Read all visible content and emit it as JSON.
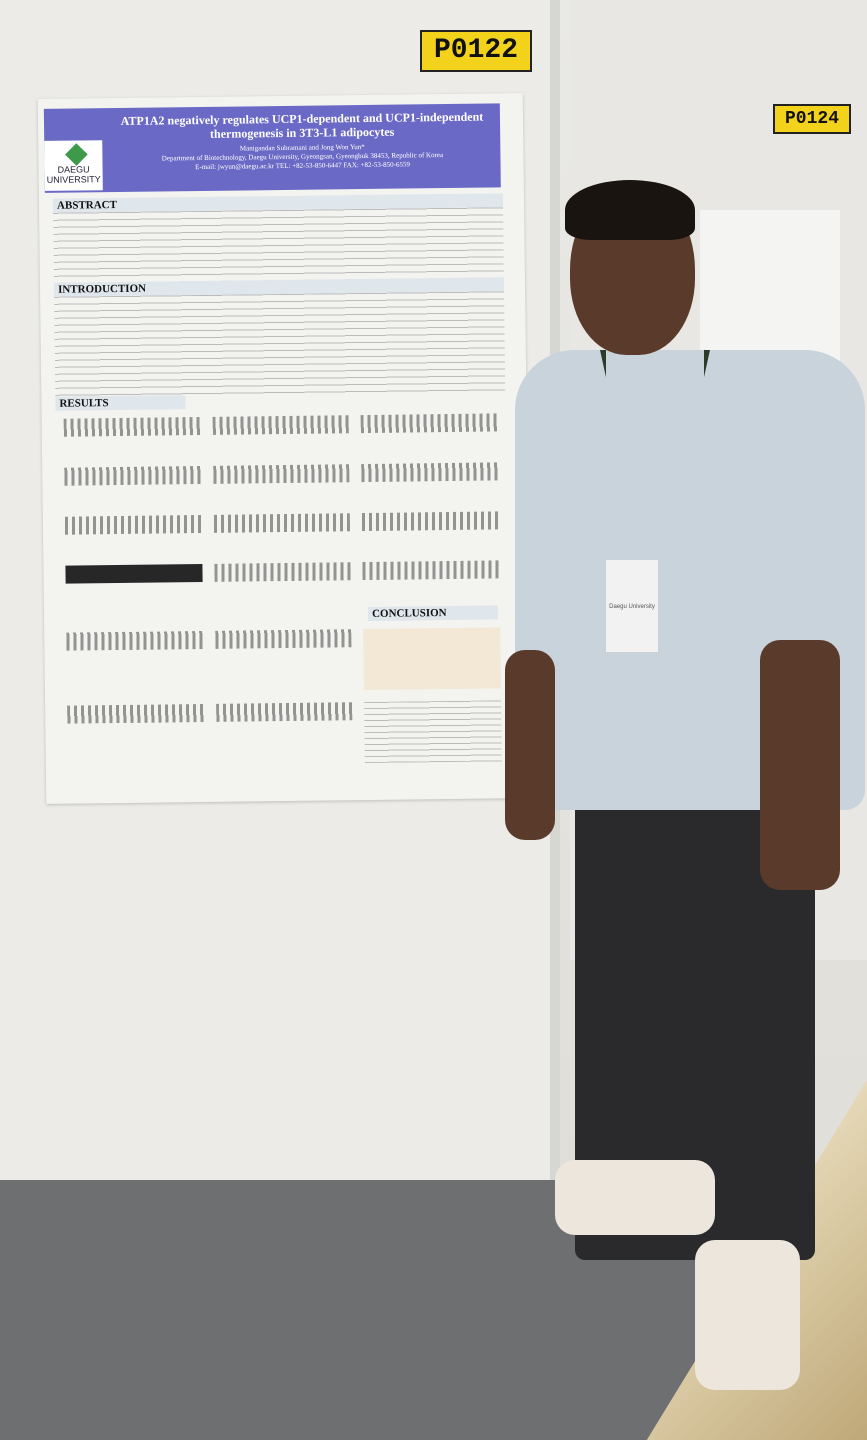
{
  "labels": {
    "left_board": "P0122",
    "right_board": "P0124"
  },
  "poster": {
    "title": "ATP1A2 negatively regulates UCP1-dependent and UCP1-independent thermogenesis in 3T3-L1 adipocytes",
    "authors": "Manigandan Subramani and Jong Won Yun*",
    "affiliation": "Department of Biotechnology, Daegu University, Gyeongsan, Gyeongbuk 38453, Republic of Korea",
    "contact": "E-mail: jwyun@daegu.ac.kr TEL: +82-53-850-6447 FAX: +82-53-850-6559",
    "logo": "DAEGU UNIVERSITY",
    "sections": {
      "abstract": "ABSTRACT",
      "introduction": "INTRODUCTION",
      "results": "RESULTS",
      "conclusion": "CONCLUSION"
    }
  },
  "badge": {
    "affiliation": "Daegu University"
  }
}
